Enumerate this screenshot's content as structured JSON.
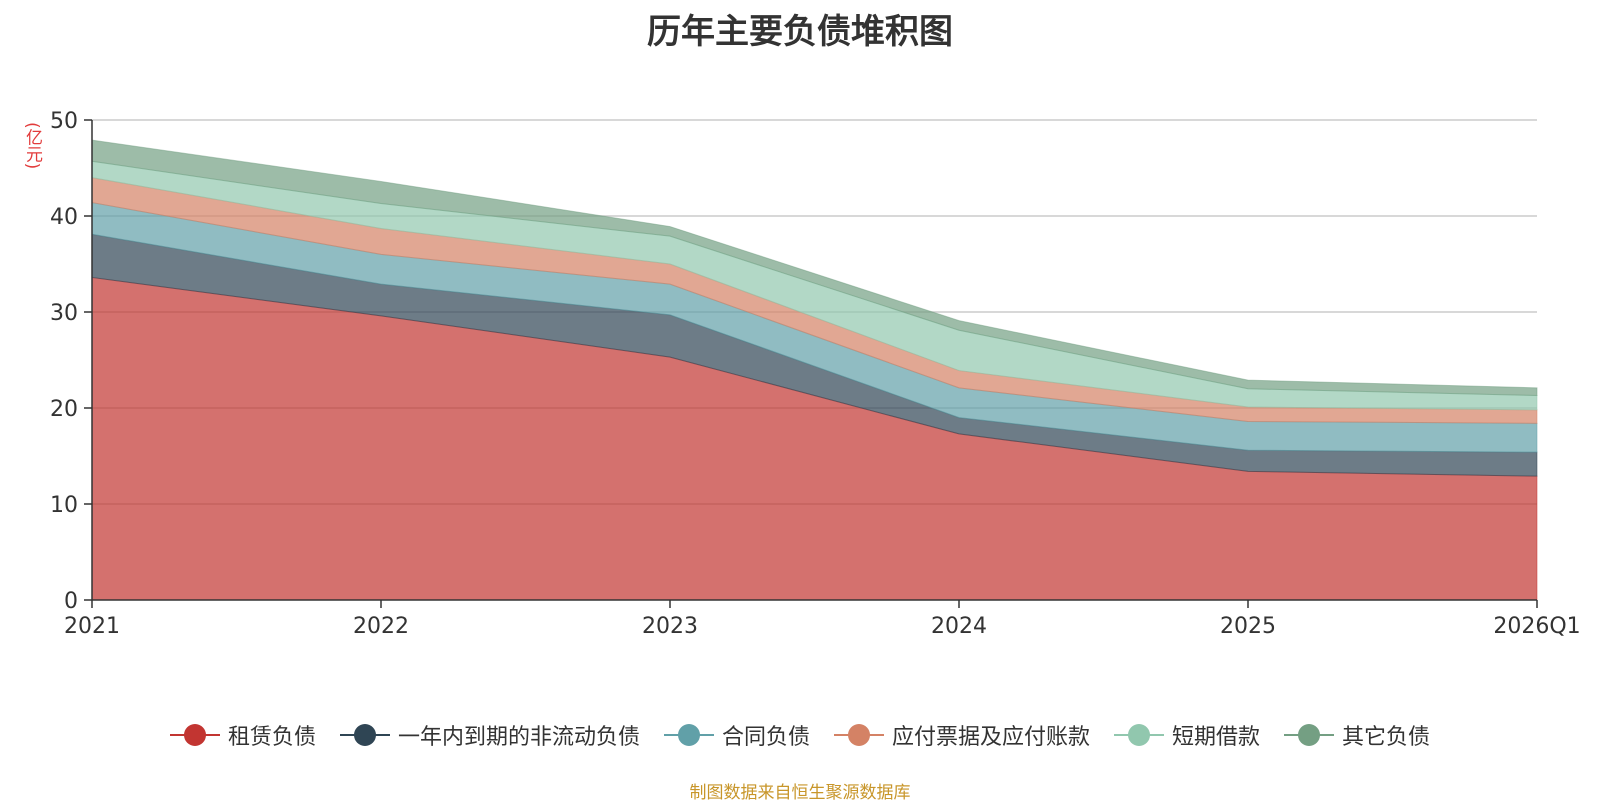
{
  "chart_data": {
    "type": "area",
    "stacked": true,
    "title": "历年主要负债堆积图",
    "ylabel": "(亿元)",
    "categories": [
      "2021",
      "2022",
      "2023",
      "2024",
      "2025",
      "2026Q1"
    ],
    "ylim": [
      0,
      50
    ],
    "yticks": [
      0,
      10,
      20,
      30,
      40,
      50
    ],
    "grid": true,
    "legend_position": "bottom",
    "series": [
      {
        "name": "租赁负债",
        "color": "#c23531",
        "values": [
          33.6,
          29.6,
          25.3,
          17.3,
          13.4,
          12.9
        ]
      },
      {
        "name": "一年内到期的非流动负债",
        "color": "#2f4554",
        "values": [
          4.5,
          3.3,
          4.4,
          1.7,
          2.2,
          2.5
        ]
      },
      {
        "name": "合同负债",
        "color": "#61a0a8",
        "values": [
          3.3,
          3.1,
          3.2,
          3.1,
          3.0,
          3.0
        ]
      },
      {
        "name": "应付票据及应付账款",
        "color": "#d48265",
        "values": [
          2.6,
          2.7,
          2.1,
          1.8,
          1.5,
          1.4
        ]
      },
      {
        "name": "短期借款",
        "color": "#91c7ae",
        "values": [
          1.7,
          2.6,
          2.9,
          4.2,
          1.9,
          1.5
        ]
      },
      {
        "name": "其它负债",
        "color": "#749f83",
        "values": [
          2.2,
          2.3,
          1.0,
          1.0,
          0.9,
          0.8
        ]
      }
    ]
  },
  "source_note": "制图数据来自恒生聚源数据库"
}
